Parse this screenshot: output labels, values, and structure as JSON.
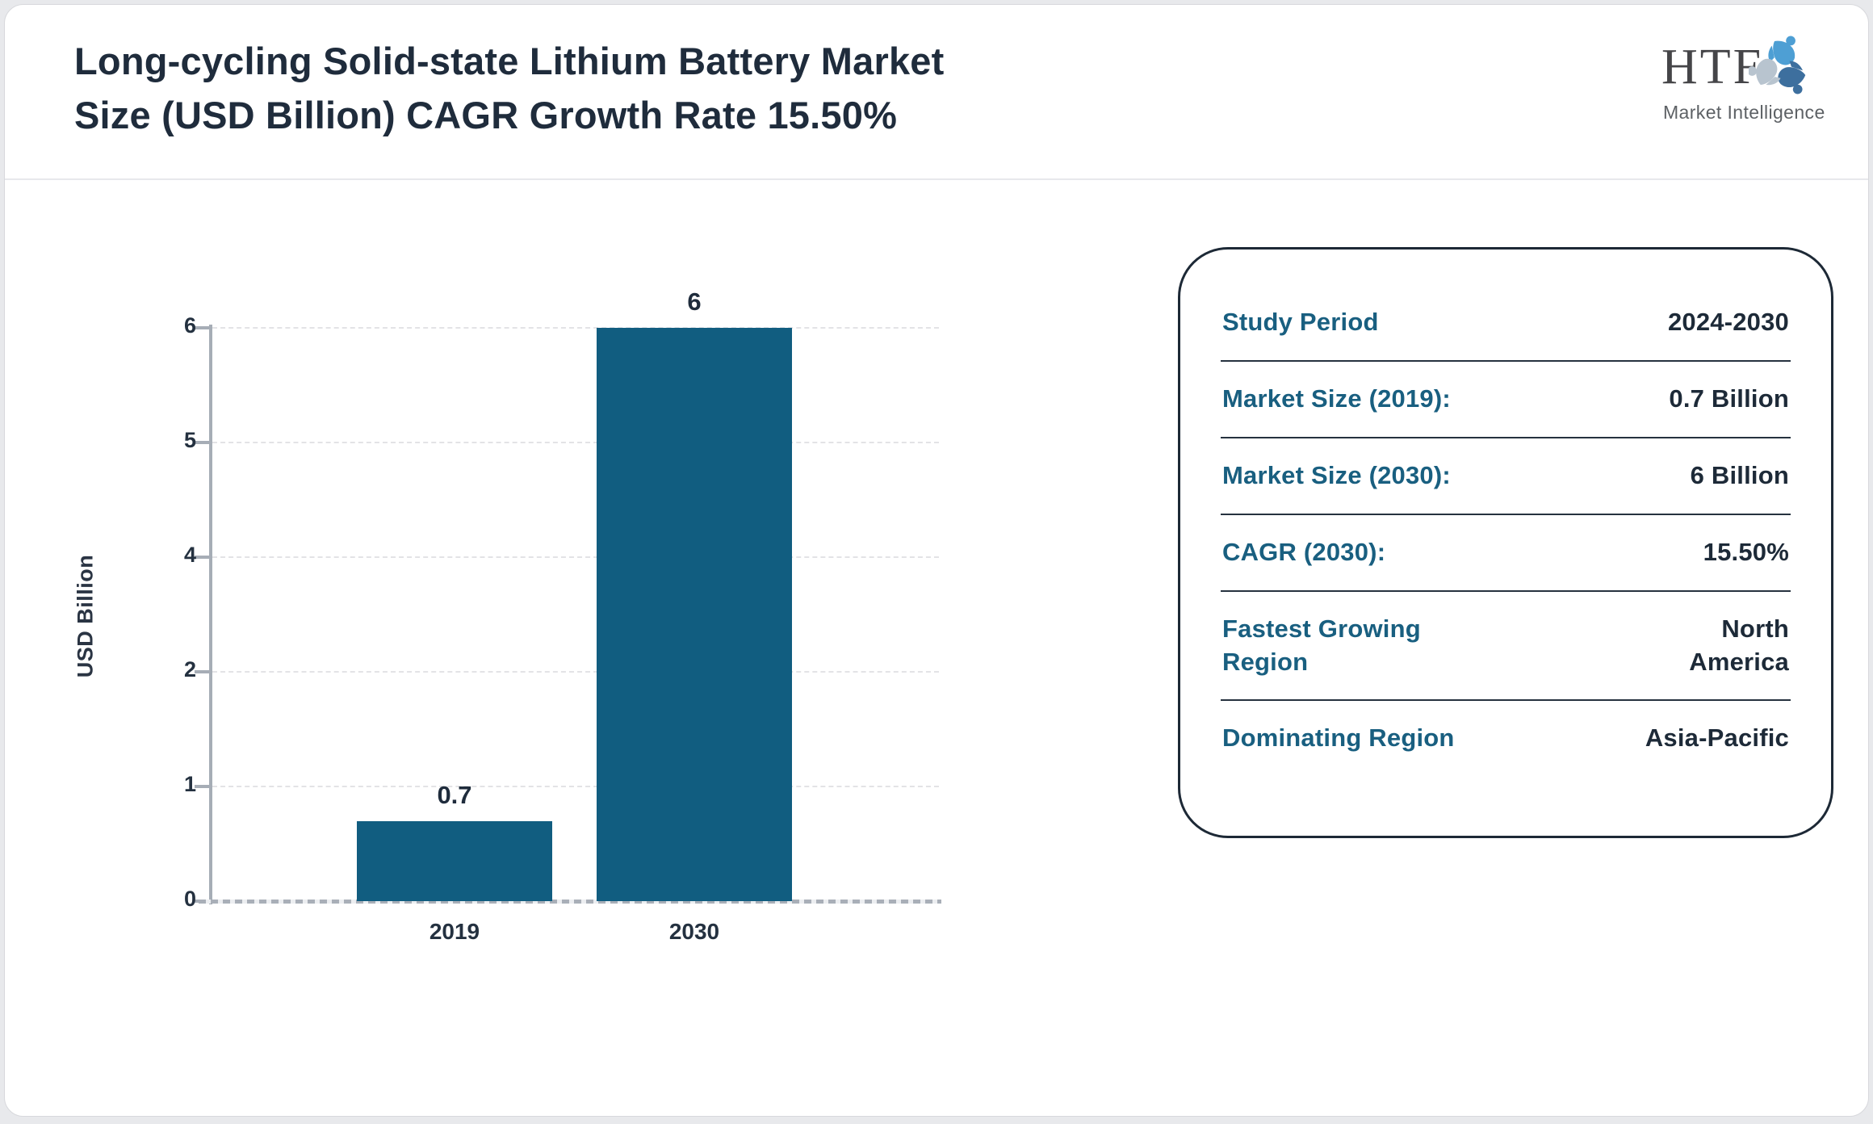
{
  "page": {
    "background": "#e8e9ec",
    "card_background": "#ffffff"
  },
  "header": {
    "title_lines": [
      "Long-cycling Solid-state Lithium Battery Market",
      "Size (USD Billion) CAGR Growth Rate 15.50%"
    ],
    "logo": {
      "text": "HTF",
      "subtext": "Market Intelligence",
      "icon": "htf-swirl-logo",
      "icon_colors": [
        "#4e9fd4",
        "#3d6f9e",
        "#b8c4cf"
      ]
    }
  },
  "chart_data": {
    "type": "bar",
    "title": "Long-cycling Solid-state Lithium Battery Market Size (USD Billion) CAGR Growth Rate 15.50%",
    "categories": [
      "2019",
      "2030"
    ],
    "values": [
      0.7,
      6
    ],
    "bar_labels": [
      "0.7",
      "6"
    ],
    "ylabel": "USD Billion",
    "xlabel": "",
    "ytick_labels": [
      "0",
      "1",
      "2",
      "4",
      "5",
      "6"
    ],
    "ylim": [
      0,
      6
    ],
    "grid": true,
    "gridstyle": "dashed",
    "legend_position": "none",
    "bar_color": "#115d80",
    "axis_color": "#a6adb6"
  },
  "info_card": {
    "rows": [
      {
        "label": "Study Period",
        "value": "2024-2030"
      },
      {
        "label": "Market Size (2019):",
        "value": "0.7 Billion"
      },
      {
        "label": "Market Size (2030):",
        "value": "6 Billion"
      },
      {
        "label": "CAGR (2030):",
        "value": "15.50%"
      },
      {
        "label": "Fastest Growing Region",
        "value": "North America"
      },
      {
        "label": "Dominating Region",
        "value": "Asia-Pacific"
      }
    ],
    "label_color": "#195f80",
    "value_color": "#1d2a38"
  }
}
